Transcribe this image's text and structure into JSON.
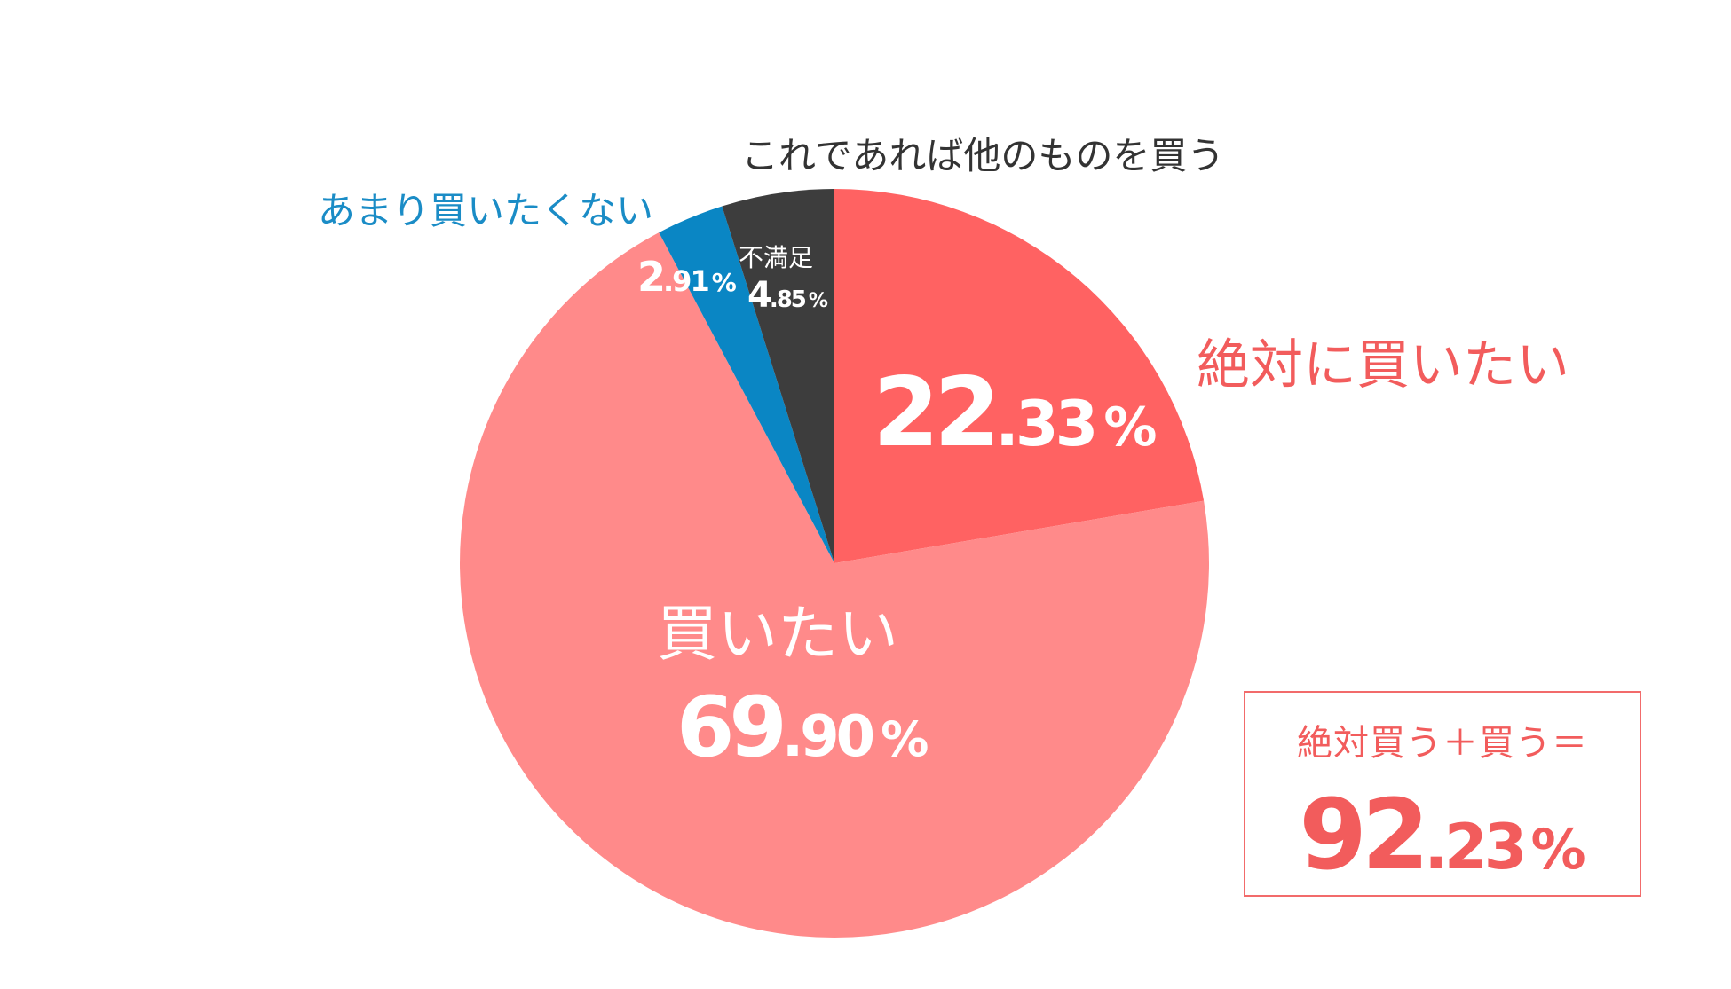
{
  "chart_data": {
    "type": "pie",
    "slices": [
      {
        "category": "絶対に買いたい",
        "value": 22.33,
        "value_int": "22",
        "value_dec": ".33",
        "pct": "%",
        "color": "#ff6262",
        "label_color": "#f25c5c"
      },
      {
        "category": "買いたい",
        "value": 69.9,
        "value_int": "69",
        "value_dec": ".90",
        "pct": "%",
        "color": "#ff8a8a",
        "label_color": "#ffffff"
      },
      {
        "category": "あまり買いたくない",
        "value": 2.91,
        "value_int": "2",
        "value_dec": ".91",
        "pct": "%",
        "color": "#0a86c4",
        "label_color": "#1a8cc6"
      },
      {
        "category": "これであれば他のものを買う",
        "value": 4.85,
        "value_int": "4",
        "value_dec": ".85",
        "pct": "%",
        "color": "#3d3d3d",
        "label_color": "#333333",
        "inner_label": "不満足"
      }
    ]
  },
  "summary": {
    "label": "絶対買う＋買う＝",
    "value": 92.23,
    "value_int": "92",
    "value_dec": ".23",
    "pct": "%",
    "color": "#f25c5c"
  }
}
